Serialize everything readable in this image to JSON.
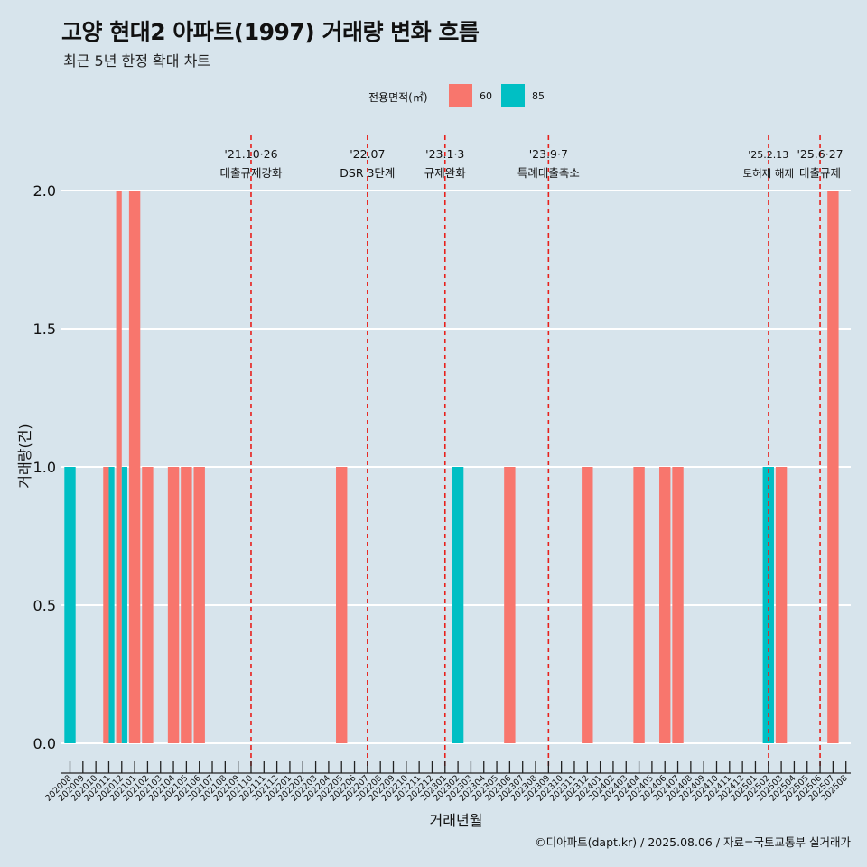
{
  "title": "고양 현대2 아파트(1997) 거래량 변화 흐름",
  "subtitle": "최근 5년 한정 확대 차트",
  "caption": "©디아파트(dapt.kr) / 2025.08.06 / 자료=국토교통부 실거래가",
  "legend": {
    "title": "전용면적(㎡)",
    "items": [
      {
        "label": "60",
        "color": "#F8766D"
      },
      {
        "label": "85",
        "color": "#00BFC4"
      }
    ]
  },
  "chart_data": {
    "type": "bar",
    "xlabel": "거래년월",
    "ylabel": "거래량(건)",
    "ylim": [
      0,
      2
    ],
    "yticks": [
      "0.0",
      "0.5",
      "1.0",
      "1.5",
      "2.0"
    ],
    "categories": [
      "202008",
      "202009",
      "202010",
      "202011",
      "202012",
      "202101",
      "202102",
      "202103",
      "202104",
      "202105",
      "202106",
      "202107",
      "202108",
      "202109",
      "202110",
      "202111",
      "202112",
      "202201",
      "202202",
      "202203",
      "202204",
      "202205",
      "202206",
      "202207",
      "202208",
      "202209",
      "202210",
      "202211",
      "202212",
      "202301",
      "202302",
      "202303",
      "202304",
      "202305",
      "202306",
      "202307",
      "202308",
      "202309",
      "202310",
      "202311",
      "202312",
      "202401",
      "202402",
      "202403",
      "202404",
      "202405",
      "202406",
      "202407",
      "202408",
      "202409",
      "202410",
      "202411",
      "202412",
      "202501",
      "202502",
      "202503",
      "202504",
      "202505",
      "202506",
      "202507",
      "202508"
    ],
    "series": [
      {
        "name": "60",
        "color": "#F8766D",
        "values": [
          0,
          0,
          0,
          1,
          2,
          2,
          1,
          0,
          1,
          1,
          1,
          0,
          0,
          0,
          0,
          0,
          0,
          0,
          0,
          0,
          0,
          1,
          0,
          0,
          0,
          0,
          0,
          0,
          0,
          0,
          0,
          0,
          0,
          0,
          1,
          0,
          0,
          0,
          0,
          0,
          1,
          0,
          0,
          0,
          1,
          0,
          1,
          1,
          0,
          0,
          0,
          0,
          0,
          0,
          0,
          1,
          0,
          0,
          0,
          2,
          0
        ]
      },
      {
        "name": "85",
        "color": "#00BFC4",
        "values": [
          1,
          0,
          0,
          1,
          1,
          0,
          0,
          0,
          0,
          0,
          0,
          0,
          0,
          0,
          0,
          0,
          0,
          0,
          0,
          0,
          0,
          0,
          0,
          0,
          0,
          0,
          0,
          0,
          0,
          0,
          1,
          0,
          0,
          0,
          0,
          0,
          0,
          0,
          0,
          0,
          0,
          0,
          0,
          0,
          0,
          0,
          0,
          0,
          0,
          0,
          0,
          0,
          0,
          0,
          1,
          0,
          0,
          0,
          0,
          0,
          0
        ]
      }
    ],
    "events": [
      {
        "month": "202110",
        "date": "'21.10·26",
        "label": "대출규제강화"
      },
      {
        "month": "202207",
        "date": "'22.07",
        "label": "DSR 3단계"
      },
      {
        "month": "202301",
        "date": "'23.1·3",
        "label": "규제완화"
      },
      {
        "month": "202309",
        "date": "'23.9·7",
        "label": "특례대출축소"
      },
      {
        "month": "202502",
        "date": "'25.2.13",
        "label": "토허제 해제"
      },
      {
        "month": "202506",
        "date": "'25.6·27",
        "label": "대출규제"
      }
    ],
    "grid": true,
    "legend_position": "top"
  }
}
